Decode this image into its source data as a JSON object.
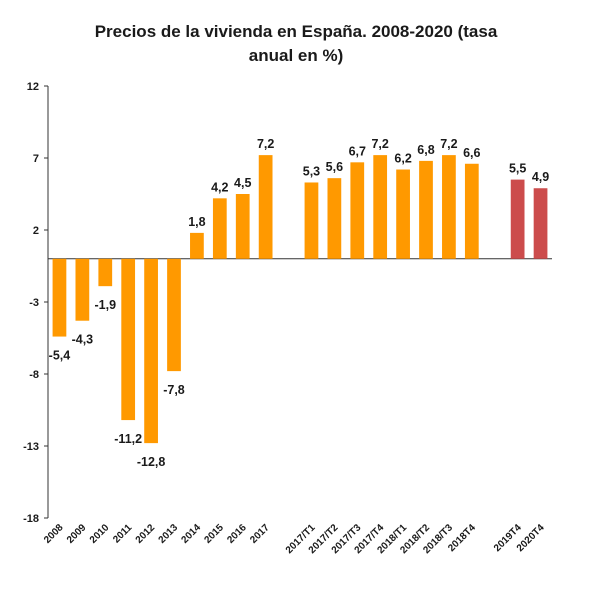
{
  "chart_data": {
    "type": "bar",
    "title_line1": "Precios de la vivienda en España. 2008-2020 (tasa",
    "title_line2": "anual en %)",
    "xlabel": "",
    "ylabel": "",
    "ylim": [
      -18,
      12
    ],
    "yticks": [
      "12",
      "7",
      "2",
      "-3",
      "-8",
      "-13",
      "-18"
    ],
    "ytick_values": [
      12,
      7,
      2,
      -3,
      -8,
      -13,
      -18
    ],
    "grid": false,
    "colors": {
      "main": "#FF9900",
      "highlight": "#CC4C4C"
    },
    "categories": [
      "2008",
      "2009",
      "2010",
      "2011",
      "2012",
      "2013",
      "2014",
      "2015",
      "2016",
      "2017",
      "",
      "2017/T1",
      "2017/T2",
      "2017/T3",
      "2017/T4",
      "2018/T1",
      "2018/T2",
      "2018/T3",
      "2018T4",
      "",
      "2019T4",
      "2020T4"
    ],
    "values": [
      -5.4,
      -4.3,
      -1.9,
      -11.2,
      -12.8,
      -7.8,
      1.8,
      4.2,
      4.5,
      7.2,
      null,
      5.3,
      5.6,
      6.7,
      7.2,
      6.2,
      6.8,
      7.2,
      6.6,
      null,
      5.5,
      4.9
    ],
    "data_labels": [
      "-5,4",
      "-4,3",
      "-1,9",
      "-11,2",
      "-12,8",
      "-7,8",
      "1,8",
      "4,2",
      "4,5",
      "7,2",
      "",
      "5,3",
      "5,6",
      "6,7",
      "7,2",
      "6,2",
      "6,8",
      "7,2",
      "6,6",
      "",
      "5,5",
      "4,9"
    ],
    "bar_colors": [
      "main",
      "main",
      "main",
      "main",
      "main",
      "main",
      "main",
      "main",
      "main",
      "main",
      "main",
      "main",
      "main",
      "main",
      "main",
      "main",
      "main",
      "main",
      "main",
      "main",
      "highlight",
      "highlight"
    ]
  }
}
